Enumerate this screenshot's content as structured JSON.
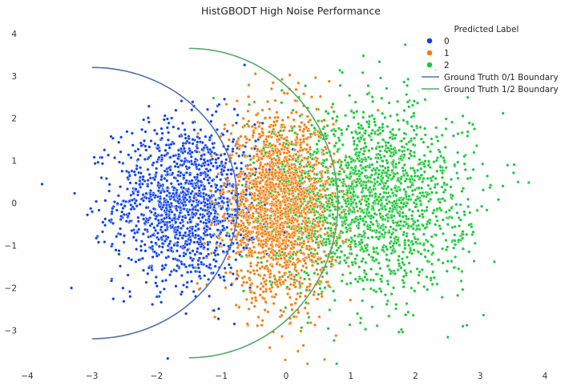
{
  "chart_data": {
    "type": "scatter",
    "title": "HistGBODT High Noise Performance",
    "xlabel": "",
    "ylabel": "",
    "xlim": [
      -4,
      4
    ],
    "ylim": [
      -3.9,
      4.3
    ],
    "xticks": [
      -4,
      -3,
      -2,
      -1,
      0,
      1,
      2,
      3,
      4
    ],
    "yticks": [
      -3,
      -2,
      -1,
      0,
      1,
      2,
      3,
      4
    ],
    "xtick_labels": [
      "−4",
      "−3",
      "−2",
      "−1",
      "0",
      "1",
      "2",
      "3",
      "4"
    ],
    "ytick_labels": [
      "−3",
      "−2",
      "−1",
      "0",
      "1",
      "2",
      "3",
      "4"
    ],
    "grid": false,
    "legend": {
      "title": "Predicted Label",
      "placement": "top-right",
      "entries": [
        {
          "label": "0",
          "color": "#0b40f5",
          "kind": "marker"
        },
        {
          "label": "1",
          "color": "#f77b04",
          "kind": "marker"
        },
        {
          "label": "2",
          "color": "#1ac937",
          "kind": "marker"
        },
        {
          "label": "Ground Truth 0/1 Boundary",
          "color": "#4c72b0",
          "kind": "line"
        },
        {
          "label": "Ground Truth 1/2 Boundary",
          "color": "#55a868",
          "kind": "line"
        }
      ]
    },
    "clusters": [
      {
        "label": "0",
        "color": "#0b40f5",
        "center_x": -1.55,
        "center_y": 0.0,
        "sd_x": 0.55,
        "sd_y": 0.95,
        "count": 1400
      },
      {
        "label": "1",
        "color": "#f77b04",
        "center_x": -0.1,
        "center_y": -0.1,
        "sd_x": 0.42,
        "sd_y": 1.05,
        "count": 2100
      },
      {
        "label": "2",
        "color": "#1ac937",
        "center_x": 1.3,
        "center_y": 0.1,
        "sd_x": 0.75,
        "sd_y": 1.1,
        "count": 1900
      }
    ],
    "boundaries": [
      {
        "name": "Ground Truth 0/1 Boundary",
        "color": "#4c72b0",
        "center_x": -3.0,
        "radius_x": 2.25,
        "radius_y": 3.2
      },
      {
        "name": "Ground Truth 1/2 Boundary",
        "color": "#55a868",
        "center_x": -1.5,
        "radius_x": 2.3,
        "radius_y": 3.65
      }
    ]
  }
}
